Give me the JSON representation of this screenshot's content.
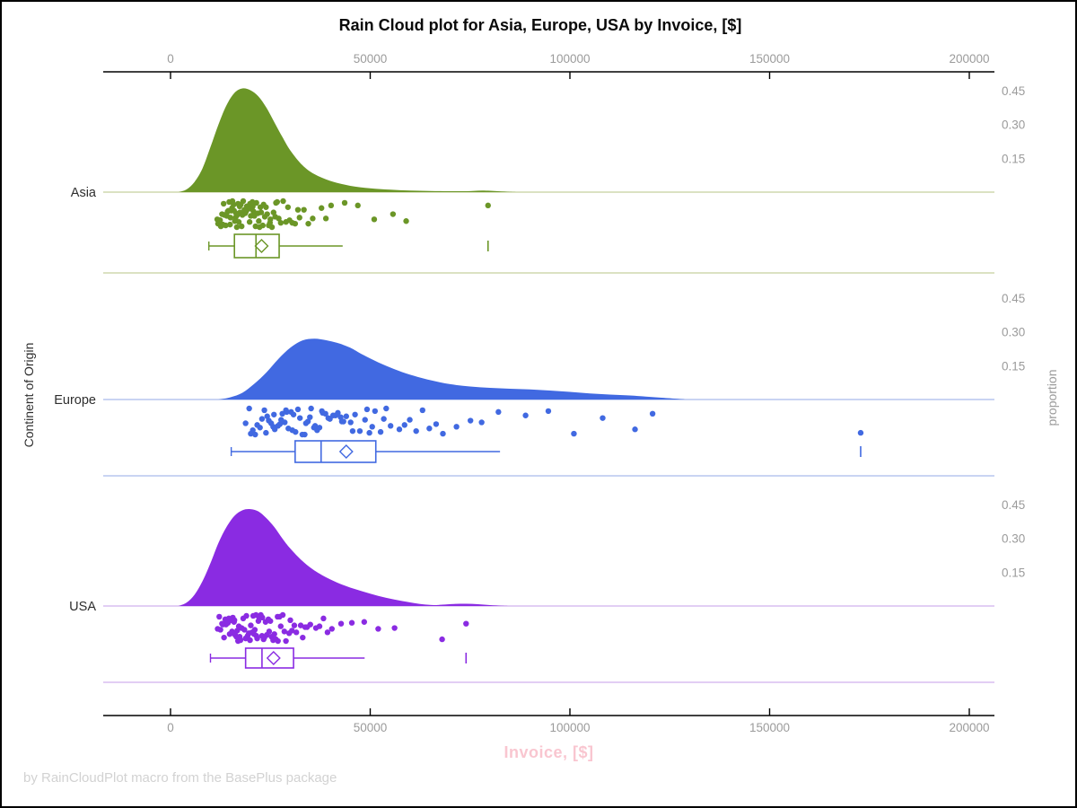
{
  "title": "Rain Cloud plot for Asia, Europe, USA by Invoice, [$]",
  "caption": "by RainCloudPlot macro from the BasePlus package",
  "axes": {
    "x_title": "Invoice, [$]",
    "x_title_color": "#f9c6d0",
    "y_left_title": "Continent of Origin",
    "y_right_title": "proportion",
    "tick_label_color": "#9b9b9b",
    "axis_line_color": "#000000"
  },
  "chart_data": {
    "type": "raincloud",
    "title": "Rain Cloud plot for Asia, Europe, USA by Invoice, [$]",
    "xlabel": "Invoice, [$]",
    "ylabel_left": "Continent of Origin",
    "ylabel_right": "proportion",
    "x_ticks": [
      0,
      50000,
      100000,
      150000,
      200000
    ],
    "x_range": [
      0,
      210000
    ],
    "proportion_ticks": [
      "0.45",
      "0.30",
      "0.15"
    ],
    "proportion_tick_values": [
      0.45,
      0.3,
      0.15
    ],
    "legend": "none",
    "series": [
      {
        "name": "Asia",
        "color": "#6B9627",
        "tint": "#cfd9ae",
        "density": [
          [
            2000,
            0
          ],
          [
            4000,
            0.012
          ],
          [
            6000,
            0.045
          ],
          [
            8000,
            0.105
          ],
          [
            10000,
            0.2
          ],
          [
            12000,
            0.3
          ],
          [
            14000,
            0.385
          ],
          [
            16000,
            0.44
          ],
          [
            18000,
            0.46
          ],
          [
            20000,
            0.452
          ],
          [
            22000,
            0.425
          ],
          [
            24000,
            0.375
          ],
          [
            26000,
            0.31
          ],
          [
            28000,
            0.245
          ],
          [
            30000,
            0.185
          ],
          [
            33000,
            0.12
          ],
          [
            36000,
            0.08
          ],
          [
            40000,
            0.05
          ],
          [
            45000,
            0.028
          ],
          [
            50000,
            0.017
          ],
          [
            55000,
            0.011
          ],
          [
            60000,
            0.007
          ],
          [
            65000,
            0.005
          ],
          [
            70000,
            0.004
          ],
          [
            74000,
            0.004
          ],
          [
            78000,
            0.007
          ],
          [
            82000,
            0.004
          ],
          [
            85000,
            0.001
          ],
          [
            87000,
            0
          ]
        ],
        "points": [
          18200,
          12400,
          22700,
          15800,
          31200,
          14100,
          19600,
          25400,
          11700,
          20800,
          16900,
          27600,
          13500,
          23900,
          17800,
          35600,
          15200,
          21500,
          28900,
          12900,
          19100,
          24600,
          16300,
          33400,
          14700,
          22100,
          18700,
          40200,
          13100,
          26200,
          20300,
          15500,
          29800,
          17400,
          23300,
          11900,
          21000,
          37800,
          16600,
          25000,
          14300,
          19900,
          30500,
          18000,
          22500,
          12600,
          27100,
          15900,
          43600,
          17100,
          24200,
          20600,
          13800,
          32300,
          18500,
          26700,
          16100,
          21900,
          46900,
          14900,
          23600,
          19400,
          28200,
          12200,
          25800,
          17600,
          34500,
          20100,
          15400,
          22300,
          51000,
          18900,
          13300,
          24900,
          16700,
          29400,
          21300,
          38900,
          14500,
          26400,
          19800,
          55700,
          17300,
          23100,
          15000,
          31900,
          20500,
          59000,
          16400,
          79500
        ],
        "box": {
          "low": 9600,
          "q1": 16000,
          "median": 21400,
          "q3": 27200,
          "high": 43100,
          "mean": 22800,
          "outliers": [
            79500
          ]
        }
      },
      {
        "name": "Europe",
        "color": "#4169E1",
        "tint": "#b7c6ef",
        "density": [
          [
            12000,
            0
          ],
          [
            15000,
            0.01
          ],
          [
            18000,
            0.03
          ],
          [
            21000,
            0.07
          ],
          [
            24000,
            0.12
          ],
          [
            27000,
            0.18
          ],
          [
            30000,
            0.23
          ],
          [
            33000,
            0.262
          ],
          [
            36000,
            0.27
          ],
          [
            39000,
            0.263
          ],
          [
            42000,
            0.25
          ],
          [
            45000,
            0.23
          ],
          [
            48000,
            0.2
          ],
          [
            52000,
            0.165
          ],
          [
            56000,
            0.135
          ],
          [
            60000,
            0.11
          ],
          [
            65000,
            0.086
          ],
          [
            70000,
            0.068
          ],
          [
            75000,
            0.058
          ],
          [
            80000,
            0.052
          ],
          [
            85000,
            0.048
          ],
          [
            90000,
            0.045
          ],
          [
            95000,
            0.04
          ],
          [
            100000,
            0.034
          ],
          [
            105000,
            0.027
          ],
          [
            110000,
            0.022
          ],
          [
            115000,
            0.018
          ],
          [
            119000,
            0.013
          ],
          [
            123000,
            0.008
          ],
          [
            127000,
            0.003
          ],
          [
            129000,
            0
          ]
        ],
        "points": [
          35200,
          22400,
          48700,
          29100,
          61500,
          18800,
          41300,
          33600,
          25700,
          53400,
          37900,
          20600,
          45100,
          30800,
          68200,
          26900,
          39500,
          23500,
          57300,
          34400,
          28000,
          49800,
          21700,
          42600,
          31900,
          64800,
          24600,
          38100,
          52600,
          27400,
          44000,
          19700,
          35900,
          59900,
          30200,
          47400,
          25200,
          40700,
          33000,
          71600,
          22900,
          51200,
          36700,
          28600,
          46200,
          20100,
          55100,
          32400,
          63100,
          26100,
          43300,
          38800,
          23900,
          58600,
          34900,
          49200,
          29500,
          75100,
          41900,
          31300,
          66500,
          24200,
          54000,
          37300,
          27700,
          82100,
          45600,
          33900,
          88900,
          21200,
          50500,
          39900,
          94600,
          30500,
          77900,
          25900,
          101000,
          36200,
          108200,
          28900,
          116300,
          42900,
          120700,
          172800
        ],
        "box": {
          "low": 15200,
          "q1": 31200,
          "median": 37700,
          "q3": 51400,
          "high": 82500,
          "mean": 44000,
          "outliers": [
            172800
          ]
        }
      },
      {
        "name": "USA",
        "color": "#8A2BE2",
        "tint": "#d9bdf0",
        "density": [
          [
            2000,
            0
          ],
          [
            4000,
            0.015
          ],
          [
            6000,
            0.05
          ],
          [
            8000,
            0.11
          ],
          [
            10000,
            0.19
          ],
          [
            12000,
            0.28
          ],
          [
            14000,
            0.35
          ],
          [
            16000,
            0.4
          ],
          [
            18000,
            0.425
          ],
          [
            20000,
            0.43
          ],
          [
            22000,
            0.42
          ],
          [
            24000,
            0.39
          ],
          [
            26000,
            0.35
          ],
          [
            28000,
            0.3
          ],
          [
            30000,
            0.255
          ],
          [
            33000,
            0.2
          ],
          [
            36000,
            0.158
          ],
          [
            40000,
            0.118
          ],
          [
            44000,
            0.088
          ],
          [
            48000,
            0.065
          ],
          [
            52000,
            0.045
          ],
          [
            56000,
            0.029
          ],
          [
            60000,
            0.016
          ],
          [
            63000,
            0.008
          ],
          [
            66000,
            0.004
          ],
          [
            68000,
            0.006
          ],
          [
            71000,
            0.009
          ],
          [
            74000,
            0.01
          ],
          [
            77000,
            0.008
          ],
          [
            80000,
            0.004
          ],
          [
            83000,
            0.001
          ],
          [
            85000,
            0
          ]
        ],
        "points": [
          21400,
          14800,
          27600,
          18200,
          33100,
          12500,
          23800,
          16900,
          29700,
          20100,
          15600,
          25300,
          11800,
          22000,
          17500,
          31500,
          13900,
          26800,
          19300,
          36400,
          15200,
          23300,
          28500,
          12900,
          20700,
          16200,
          34200,
          24500,
          18800,
          30400,
          14400,
          22600,
          26000,
          17100,
          38300,
          13400,
          21100,
          15900,
          28900,
          19600,
          32600,
          23000,
          16500,
          40400,
          14100,
          25700,
          20400,
          35000,
          12200,
          22900,
          17800,
          30000,
          26400,
          15400,
          42700,
          19000,
          24100,
          33700,
          13700,
          21700,
          16700,
          45400,
          28100,
          20900,
          37300,
          14600,
          23500,
          18500,
          48500,
          26900,
          15700,
          31000,
          22200,
          17300,
          52000,
          25000,
          19900,
          39300,
          13100,
          27300,
          21500,
          56100,
          16000,
          68000,
          24700,
          74000
        ],
        "box": {
          "low": 10000,
          "q1": 18800,
          "median": 22900,
          "q3": 30800,
          "high": 48600,
          "mean": 25800,
          "outliers": [
            74000
          ]
        }
      }
    ]
  }
}
